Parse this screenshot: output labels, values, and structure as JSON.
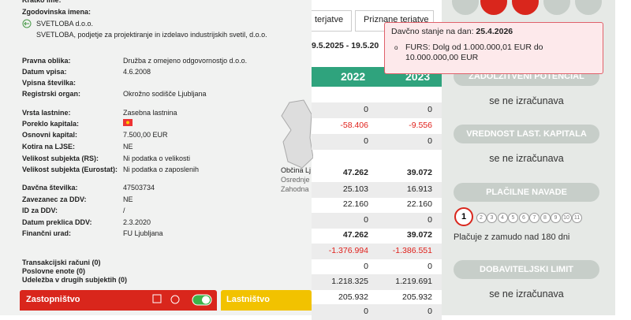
{
  "company": {
    "short_name_label": "Kratko ime:",
    "history_label": "Zgodovinska imena:",
    "history": [
      "SVETLOBA d.o.o.",
      "SVETLOBA, podjetje za projektiranje in izdelavo industrijskih svetil, d.o.o."
    ],
    "fields": [
      {
        "label": "Pravna oblika:",
        "value": "Družba z omejeno odgovornostjo d.o.o."
      },
      {
        "label": "Datum vpisa:",
        "value": "4.6.2008"
      },
      {
        "label": "Vpisna številka:"
      },
      {
        "label": "Registrski organ:",
        "value": "Okrožno sodišče Ljubljana"
      },
      {
        "label": "Vrsta lastnine:",
        "value": "Zasebna lastnina"
      },
      {
        "label": "Poreklo kapitala:"
      },
      {
        "label": "Osnovni kapital:",
        "value": "7.500,00 EUR"
      },
      {
        "label": "Kotira na LJSE:",
        "value": "NE"
      },
      {
        "label": "Velikost subjekta (RS):",
        "value": "Ni podatka o velikosti"
      },
      {
        "label": "Velikost subjekta (Eurostat):",
        "value": "Ni podatka o zaposlenih"
      },
      {
        "label": "Davčna številka:",
        "value": "47503734"
      },
      {
        "label": "Zavezanec za DDV:",
        "value": "NE"
      },
      {
        "label": "ID za DDV:",
        "value": "/"
      },
      {
        "label": "Datum preklica DDV:",
        "value": "2.3.2020"
      },
      {
        "label": "Finančni urad:",
        "value": "FU Ljubljana"
      }
    ],
    "links": [
      "Transakcijski računi (0)",
      "Poslovne enote (0)",
      "Udeležba v drugih subjektih (0)"
    ],
    "panels": [
      "Zastopništvo",
      "Lastništvo"
    ]
  },
  "map": {
    "labels": [
      "Občina Lj",
      "Osrednje",
      "Zahodna"
    ]
  },
  "financials": {
    "tabs": [
      "terjatve",
      "Priznane terjatve"
    ],
    "period": "9.5.2025 - 19.5.20",
    "years": [
      "2022",
      "2023"
    ],
    "rows": [
      [
        "0",
        "0"
      ],
      [
        "-58.406",
        "-9.556"
      ],
      [
        "0",
        "0"
      ],
      [
        "47.262",
        "39.072"
      ],
      [
        "25.103",
        "16.913"
      ],
      [
        "22.160",
        "22.160"
      ],
      [
        "0",
        "0"
      ],
      [
        "47.262",
        "39.072"
      ],
      [
        "-1.376.994",
        "-1.386.551"
      ],
      [
        "0",
        "0"
      ],
      [
        "1.218.325",
        "1.219.691"
      ],
      [
        "205.932",
        "205.932"
      ],
      [
        "0",
        "0"
      ]
    ]
  },
  "tooltip": {
    "title": "Davčno stanje na dan:",
    "date": "25.4.2026",
    "item": "FURS: Dolg od 1.000.000,01 EUR do 10.000.000,00 EUR"
  },
  "ratings": [
    {
      "button": "ZADOLŽITVENI POTENCIAL",
      "text": "se ne izračunava"
    },
    {
      "button": "VREDNOST LAST. KAPITALA",
      "text": "se ne izračunava"
    },
    {
      "button": "PLAČILNE NAVADE",
      "levels": [
        "1",
        "2",
        "3",
        "4",
        "5",
        "6",
        "7",
        "8",
        "9",
        "10",
        "11"
      ],
      "text": "Plačuje z zamudo nad 180 dni"
    },
    {
      "button": "DOBAVITELJSKI LIMIT",
      "text": "se ne izračunava"
    }
  ]
}
